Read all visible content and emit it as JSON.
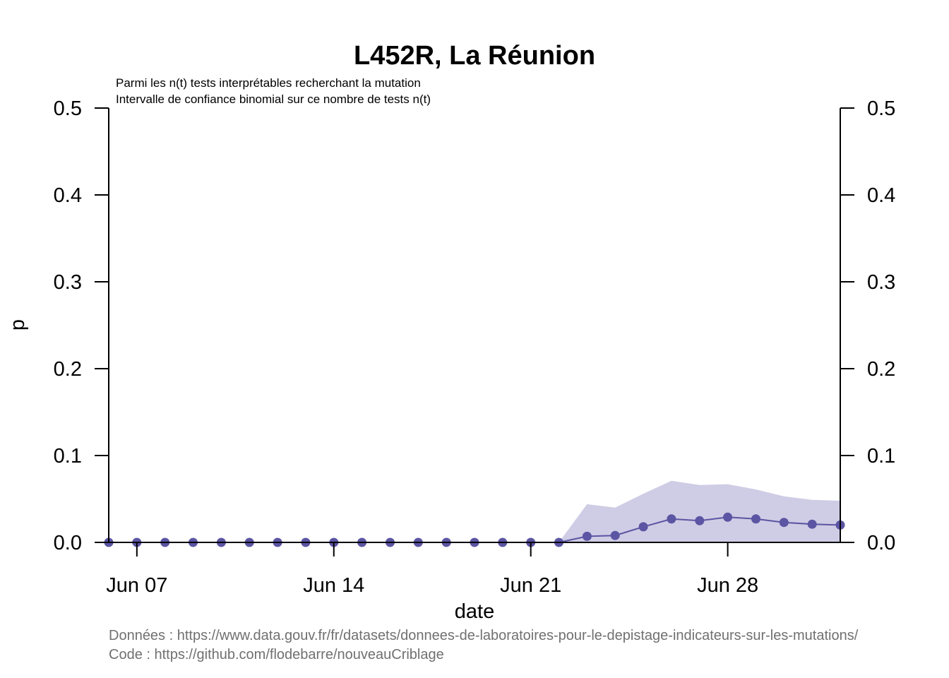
{
  "chart_data": {
    "type": "line",
    "title": "L452R, La Réunion",
    "subtitle_lines": [
      "Parmi les n(t) tests interprétables recherchant la mutation",
      "Intervalle de confiance binomial sur ce nombre de tests n(t)"
    ],
    "xlabel": "date",
    "ylabel": "p",
    "x_tick_labels": [
      "Jun 07",
      "Jun 14",
      "Jun 21",
      "Jun 28"
    ],
    "x_tick_dates": [
      "2021-06-07",
      "2021-06-14",
      "2021-06-21",
      "2021-06-28"
    ],
    "y_ticks": [
      0.0,
      0.1,
      0.2,
      0.3,
      0.4,
      0.5
    ],
    "y_tick_labels": [
      "0.0",
      "0.1",
      "0.2",
      "0.3",
      "0.4",
      "0.5"
    ],
    "xlim": [
      "2021-06-06",
      "2021-07-02"
    ],
    "ylim": [
      0,
      0.5
    ],
    "right_axis": true,
    "grid": false,
    "series_color": "#5b55a3",
    "band_color": "#cfcce5",
    "x": [
      "2021-06-06",
      "2021-06-07",
      "2021-06-08",
      "2021-06-09",
      "2021-06-10",
      "2021-06-11",
      "2021-06-12",
      "2021-06-13",
      "2021-06-14",
      "2021-06-15",
      "2021-06-16",
      "2021-06-17",
      "2021-06-18",
      "2021-06-19",
      "2021-06-20",
      "2021-06-21",
      "2021-06-22",
      "2021-06-23",
      "2021-06-24",
      "2021-06-25",
      "2021-06-26",
      "2021-06-27",
      "2021-06-28",
      "2021-06-29",
      "2021-06-30",
      "2021-07-01",
      "2021-07-02"
    ],
    "values": [
      0,
      0,
      0,
      0,
      0,
      0,
      0,
      0,
      0,
      0,
      0,
      0,
      0,
      0,
      0,
      0,
      0,
      0.007,
      0.008,
      0.018,
      0.027,
      0.025,
      0.029,
      0.027,
      0.023,
      0.021,
      0.02
    ],
    "ci_upper": [
      0,
      0,
      0,
      0,
      0,
      0,
      0,
      0,
      0,
      0,
      0,
      0,
      0,
      0,
      0,
      0,
      0,
      0.044,
      0.04,
      0.056,
      0.071,
      0.066,
      0.067,
      0.061,
      0.053,
      0.049,
      0.048
    ],
    "ci_lower": [
      0,
      0,
      0,
      0,
      0,
      0,
      0,
      0,
      0,
      0,
      0,
      0,
      0,
      0,
      0,
      0,
      0,
      0.002,
      0.002,
      0.009,
      0.015,
      0.013,
      0.017,
      0.015,
      0.012,
      0.01,
      0.009
    ]
  },
  "credits": [
    "Données : https://www.data.gouv.fr/fr/datasets/donnees-de-laboratoires-pour-le-depistage-indicateurs-sur-les-mutations/",
    "Code : https://github.com/flodebarre/nouveauCriblage"
  ]
}
